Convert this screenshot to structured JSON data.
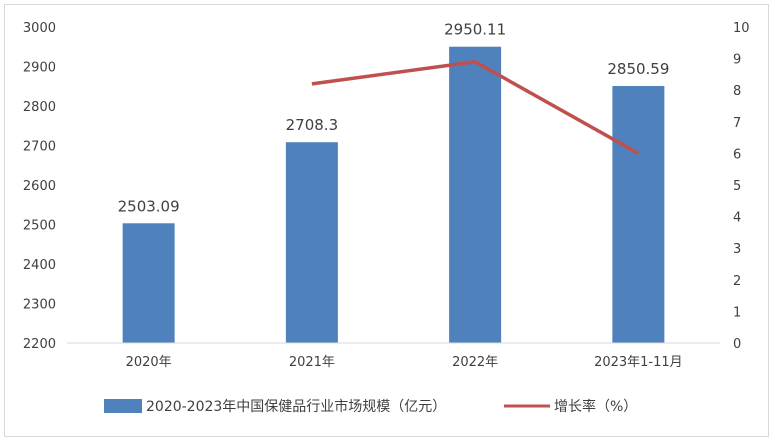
{
  "chart_data": {
    "type": "bar",
    "categories": [
      "2020年",
      "2021年",
      "2022年",
      "2023年1-11月"
    ],
    "series": [
      {
        "name": "2020-2023年中国保健品行业市场规模（亿元）",
        "type": "bar",
        "axis": "left",
        "values": [
          2503.09,
          2708.3,
          2950.11,
          2850.59
        ],
        "labels": [
          "2503.09",
          "2708.3",
          "2950.11",
          "2850.59"
        ],
        "color": "#4f81bd"
      },
      {
        "name": "增长率（%）",
        "type": "line",
        "axis": "right",
        "values": [
          null,
          8.2,
          8.9,
          6.0
        ],
        "color": "#c0504d"
      }
    ],
    "y_left": {
      "min": 2200,
      "max": 3000,
      "step": 100,
      "ticks": [
        "2200",
        "2300",
        "2400",
        "2500",
        "2600",
        "2700",
        "2800",
        "2900",
        "3000"
      ]
    },
    "y_right": {
      "min": 0,
      "max": 10,
      "step": 1,
      "ticks": [
        "0",
        "1",
        "2",
        "3",
        "4",
        "5",
        "6",
        "7",
        "8",
        "9",
        "10"
      ]
    },
    "grid": false,
    "legend": "bottom"
  }
}
